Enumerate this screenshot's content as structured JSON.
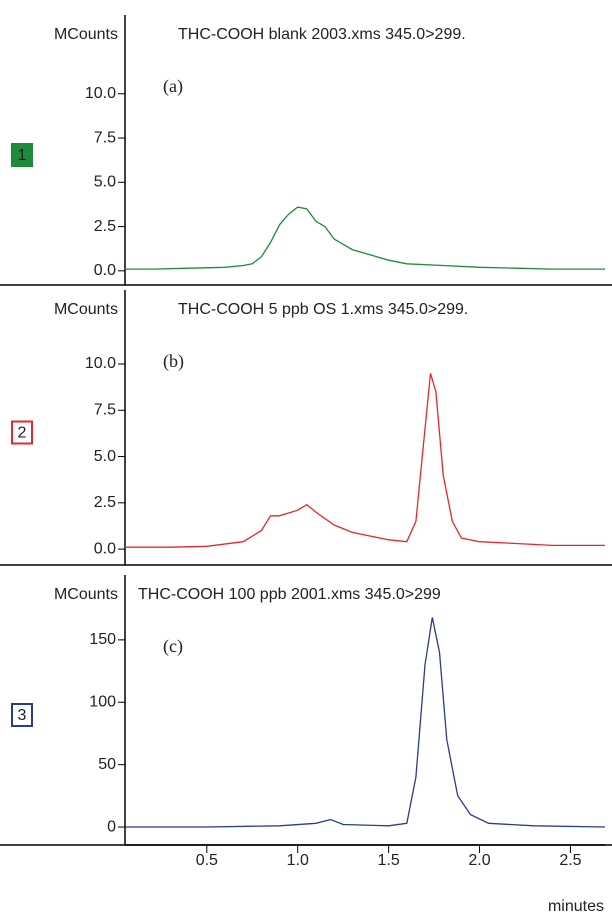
{
  "chart_data": [
    {
      "type": "line",
      "ylabel": "MCounts",
      "panel_number": "1",
      "panel_tag": "(a)",
      "xlim": [
        0.05,
        2.69
      ],
      "ylim": [
        -0.8,
        14.45
      ],
      "yticks": [
        {
          "value": 0,
          "label": "0.0"
        },
        2.5,
        {
          "value": 5,
          "label": "5.0"
        },
        7.5,
        {
          "value": 10,
          "label": "10.0"
        }
      ],
      "x": [
        0.05,
        0.2,
        0.4,
        0.6,
        0.7,
        0.75,
        0.8,
        0.85,
        0.9,
        0.95,
        1.0,
        1.05,
        1.1,
        1.15,
        1.2,
        1.3,
        1.4,
        1.5,
        1.6,
        1.8,
        2.0,
        2.2,
        2.4,
        2.69
      ],
      "series": [
        {
          "name": "THC-COOH  blank 2003.xms 345.0>299.",
          "color": "#1e8a3c",
          "values": [
            0.1,
            0.1,
            0.15,
            0.2,
            0.3,
            0.4,
            0.8,
            1.6,
            2.6,
            3.2,
            3.6,
            3.5,
            2.8,
            2.5,
            1.8,
            1.2,
            0.9,
            0.6,
            0.4,
            0.3,
            0.2,
            0.15,
            0.1,
            0.1
          ]
        }
      ]
    },
    {
      "type": "line",
      "ylabel": "MCounts",
      "panel_number": "2",
      "panel_tag": "(b)",
      "xlim": [
        0.05,
        2.69
      ],
      "ylim": [
        -0.86,
        14
      ],
      "yticks": [
        {
          "value": 0,
          "label": "0.0"
        },
        2.5,
        {
          "value": 5,
          "label": "5.0"
        },
        7.5,
        {
          "value": 10,
          "label": "10.0"
        }
      ],
      "x": [
        0.05,
        0.3,
        0.5,
        0.7,
        0.8,
        0.85,
        0.9,
        1.0,
        1.05,
        1.1,
        1.2,
        1.3,
        1.4,
        1.5,
        1.6,
        1.65,
        1.7,
        1.73,
        1.76,
        1.8,
        1.85,
        1.9,
        2.0,
        2.2,
        2.4,
        2.69
      ],
      "series": [
        {
          "name": "THC-COOH 5 ppb OS 1.xms 345.0>299.",
          "color": "#e8262c",
          "values": [
            0.1,
            0.1,
            0.15,
            0.4,
            1.0,
            1.8,
            1.8,
            2.1,
            2.4,
            2.0,
            1.3,
            0.9,
            0.7,
            0.5,
            0.4,
            1.5,
            6.5,
            9.5,
            8.5,
            4.0,
            1.5,
            0.6,
            0.4,
            0.3,
            0.2,
            0.2
          ]
        }
      ]
    },
    {
      "type": "line",
      "ylabel": "MCounts",
      "panel_number": "3",
      "panel_tag": "(c)",
      "xlabel": "minutes",
      "xlim": [
        0.05,
        2.69
      ],
      "ylim": [
        -14.4,
        202
      ],
      "yticks": [
        0,
        50,
        100,
        150
      ],
      "xticks": [
        0.5,
        {
          "value": 1,
          "label": "1.0"
        },
        1.5,
        {
          "value": 2,
          "label": "2.0"
        },
        2.5
      ],
      "x": [
        0.05,
        0.5,
        0.9,
        1.1,
        1.18,
        1.25,
        1.5,
        1.6,
        1.65,
        1.7,
        1.74,
        1.78,
        1.82,
        1.88,
        1.95,
        2.05,
        2.3,
        2.69
      ],
      "series": [
        {
          "name": "THC-COOH 100 ppb 2001.xms 345.0>299",
          "color": "#2b3a94",
          "values": [
            0,
            0,
            1,
            3,
            6,
            2,
            1,
            3,
            40,
            130,
            168,
            140,
            70,
            25,
            10,
            3,
            1,
            0
          ]
        }
      ]
    }
  ]
}
